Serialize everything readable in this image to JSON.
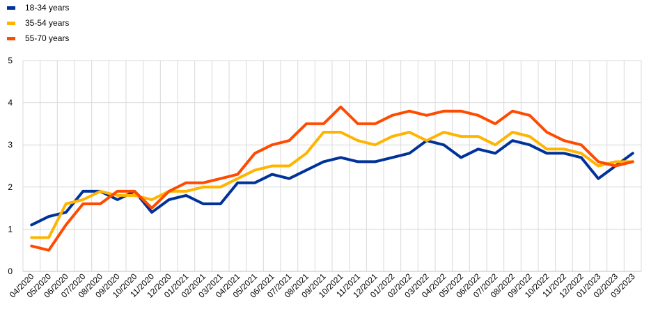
{
  "chart_data": {
    "type": "line",
    "title": "",
    "xlabel": "",
    "ylabel": "",
    "ylim": [
      0,
      5
    ],
    "yticks": [
      0,
      1,
      2,
      3,
      4,
      5
    ],
    "grid": true,
    "legend_position": "top-left",
    "categories": [
      "04/2020",
      "05/2020",
      "06/2020",
      "07/2020",
      "08/2020",
      "09/2020",
      "10/2020",
      "11/2020",
      "12/2020",
      "01/2021",
      "02/2021",
      "03/2021",
      "04/2021",
      "05/2021",
      "06/2021",
      "07/2021",
      "08/2021",
      "09/2021",
      "10/2021",
      "11/2021",
      "12/2021",
      "01/2022",
      "02/2022",
      "03/2022",
      "04/2022",
      "05/2022",
      "06/2022",
      "07/2022",
      "08/2022",
      "09/2022",
      "10/2022",
      "11/2022",
      "12/2022",
      "01/2023",
      "02/2023",
      "03/2023"
    ],
    "series": [
      {
        "name": "18-34 years",
        "color": "#003299",
        "values": [
          1.1,
          1.3,
          1.4,
          1.9,
          1.9,
          1.7,
          1.9,
          1.4,
          1.7,
          1.8,
          1.6,
          1.6,
          2.1,
          2.1,
          2.3,
          2.2,
          2.4,
          2.6,
          2.7,
          2.6,
          2.6,
          2.7,
          2.8,
          3.1,
          3.0,
          2.7,
          2.9,
          2.8,
          3.1,
          3.0,
          2.8,
          2.8,
          2.7,
          2.2,
          2.5,
          2.8
        ]
      },
      {
        "name": "35-54 years",
        "color": "#FFB400",
        "values": [
          0.8,
          0.8,
          1.6,
          1.7,
          1.9,
          1.8,
          1.8,
          1.7,
          1.9,
          1.9,
          2.0,
          2.0,
          2.2,
          2.4,
          2.5,
          2.5,
          2.8,
          3.3,
          3.3,
          3.1,
          3.0,
          3.2,
          3.3,
          3.1,
          3.3,
          3.2,
          3.2,
          3.0,
          3.3,
          3.2,
          2.9,
          2.9,
          2.8,
          2.5,
          2.6,
          2.6
        ]
      },
      {
        "name": "55-70 years",
        "color": "#FF4B00",
        "values": [
          0.6,
          0.5,
          1.1,
          1.6,
          1.6,
          1.9,
          1.9,
          1.5,
          1.9,
          2.1,
          2.1,
          2.2,
          2.3,
          2.8,
          3.0,
          3.1,
          3.5,
          3.5,
          3.9,
          3.5,
          3.5,
          3.7,
          3.8,
          3.7,
          3.8,
          3.8,
          3.7,
          3.5,
          3.8,
          3.7,
          3.3,
          3.1,
          3.0,
          2.6,
          2.5,
          2.6
        ]
      }
    ]
  }
}
